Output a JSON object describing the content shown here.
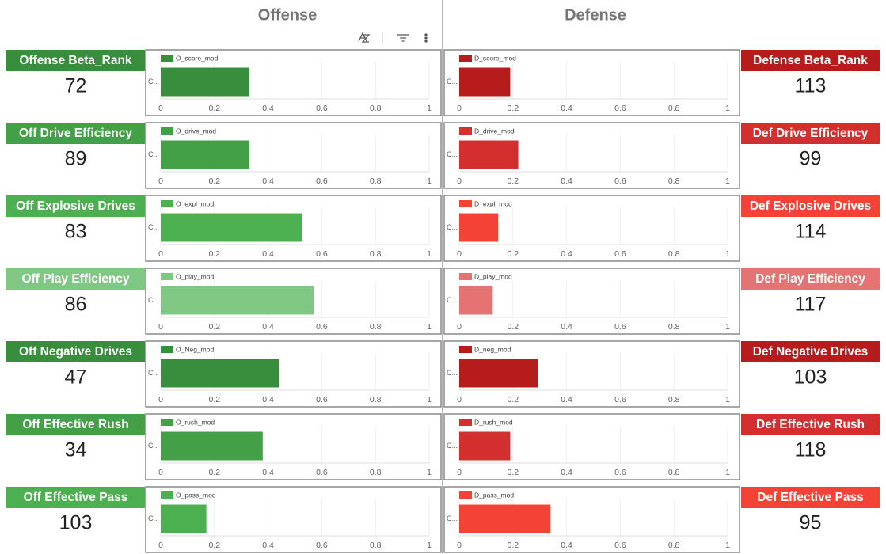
{
  "headers": {
    "offense": "Offense",
    "defense": "Defense"
  },
  "cards": {
    "offense": [
      {
        "label": "Offense Beta_Rank",
        "value": "72",
        "color": "#388e3c"
      },
      {
        "label": "Off Drive Efficiency",
        "value": "89",
        "color": "#43a047"
      },
      {
        "label": "Off Explosive Drives",
        "value": "83",
        "color": "#4caf50"
      },
      {
        "label": "Off Play Efficiency",
        "value": "86",
        "color": "#81c784"
      },
      {
        "label": "Off Negative Drives",
        "value": "47",
        "color": "#388e3c"
      },
      {
        "label": "Off Effective Rush",
        "value": "34",
        "color": "#43a047"
      },
      {
        "label": "Off Effective Pass",
        "value": "103",
        "color": "#4caf50"
      }
    ],
    "defense": [
      {
        "label": "Defense Beta_Rank",
        "value": "113",
        "color": "#b71c1c"
      },
      {
        "label": "Def Drive Efficiency",
        "value": "99",
        "color": "#d32f2f"
      },
      {
        "label": "Def Explosive Drives",
        "value": "114",
        "color": "#f44336"
      },
      {
        "label": "Def Play Efficiency",
        "value": "117",
        "color": "#e57373"
      },
      {
        "label": "Def Negative Drives",
        "value": "103",
        "color": "#b71c1c"
      },
      {
        "label": "Def Effective Rush",
        "value": "118",
        "color": "#d32f2f"
      },
      {
        "label": "Def Effective Pass",
        "value": "95",
        "color": "#f44336"
      }
    ]
  },
  "chart_data": [
    {
      "type": "bar",
      "categories": [
        "C..."
      ],
      "series": [
        {
          "name": "O_score_mod",
          "color": "#388e3c",
          "values": [
            0.33
          ]
        }
      ],
      "xlim": [
        0,
        1
      ],
      "xticks": [
        0,
        0.2,
        0.4,
        0.6,
        0.8,
        1
      ],
      "grid": true
    },
    {
      "type": "bar",
      "categories": [
        "C..."
      ],
      "series": [
        {
          "name": "O_drive_mod",
          "color": "#43a047",
          "values": [
            0.33
          ]
        }
      ],
      "xlim": [
        0,
        1
      ],
      "xticks": [
        0,
        0.2,
        0.4,
        0.6,
        0.8,
        1
      ],
      "grid": true
    },
    {
      "type": "bar",
      "categories": [
        "C..."
      ],
      "series": [
        {
          "name": "O_expl_mod",
          "color": "#4caf50",
          "values": [
            0.525
          ]
        }
      ],
      "xlim": [
        0,
        1
      ],
      "xticks": [
        0,
        0.2,
        0.4,
        0.6,
        0.8,
        1
      ],
      "grid": true
    },
    {
      "type": "bar",
      "categories": [
        "C..."
      ],
      "series": [
        {
          "name": "O_play_mod",
          "color": "#81c784",
          "values": [
            0.57
          ]
        }
      ],
      "xlim": [
        0,
        1
      ],
      "xticks": [
        0,
        0.2,
        0.4,
        0.6,
        0.8,
        1
      ],
      "grid": true
    },
    {
      "type": "bar",
      "categories": [
        "C..."
      ],
      "series": [
        {
          "name": "O_Neg_mod",
          "color": "#388e3c",
          "values": [
            0.44
          ]
        }
      ],
      "xlim": [
        0,
        1
      ],
      "xticks": [
        0,
        0.2,
        0.4,
        0.6,
        0.8,
        1
      ],
      "grid": true
    },
    {
      "type": "bar",
      "categories": [
        "C..."
      ],
      "series": [
        {
          "name": "O_rush_mod",
          "color": "#43a047",
          "values": [
            0.38
          ]
        }
      ],
      "xlim": [
        0,
        1
      ],
      "xticks": [
        0,
        0.2,
        0.4,
        0.6,
        0.8,
        1
      ],
      "grid": true
    },
    {
      "type": "bar",
      "categories": [
        "C..."
      ],
      "series": [
        {
          "name": "O_pass_mod",
          "color": "#4caf50",
          "values": [
            0.17
          ]
        }
      ],
      "xlim": [
        0,
        1
      ],
      "xticks": [
        0,
        0.2,
        0.4,
        0.6,
        0.8,
        1
      ],
      "grid": true
    },
    {
      "type": "bar",
      "categories": [
        "C..."
      ],
      "series": [
        {
          "name": "D_score_mod",
          "color": "#b71c1c",
          "values": [
            0.19
          ]
        }
      ],
      "xlim": [
        0,
        1
      ],
      "xticks": [
        0,
        0.2,
        0.4,
        0.6,
        0.8,
        1
      ],
      "grid": true
    },
    {
      "type": "bar",
      "categories": [
        "C..."
      ],
      "series": [
        {
          "name": "D_drive_mod",
          "color": "#d32f2f",
          "values": [
            0.22
          ]
        }
      ],
      "xlim": [
        0,
        1
      ],
      "xticks": [
        0,
        0.2,
        0.4,
        0.6,
        0.8,
        1
      ],
      "grid": true
    },
    {
      "type": "bar",
      "categories": [
        "C..."
      ],
      "series": [
        {
          "name": "D_expl_mod",
          "color": "#f44336",
          "values": [
            0.145
          ]
        }
      ],
      "xlim": [
        0,
        1
      ],
      "xticks": [
        0,
        0.2,
        0.4,
        0.6,
        0.8,
        1
      ],
      "grid": true
    },
    {
      "type": "bar",
      "categories": [
        "C..."
      ],
      "series": [
        {
          "name": "D_play_mod",
          "color": "#e57373",
          "values": [
            0.125
          ]
        }
      ],
      "xlim": [
        0,
        1
      ],
      "xticks": [
        0,
        0.2,
        0.4,
        0.6,
        0.8,
        1
      ],
      "grid": true
    },
    {
      "type": "bar",
      "categories": [
        "C..."
      ],
      "series": [
        {
          "name": "D_neg_mod",
          "color": "#b71c1c",
          "values": [
            0.295
          ]
        }
      ],
      "xlim": [
        0,
        1
      ],
      "xticks": [
        0,
        0.2,
        0.4,
        0.6,
        0.8,
        1
      ],
      "grid": true
    },
    {
      "type": "bar",
      "categories": [
        "C..."
      ],
      "series": [
        {
          "name": "D_rush_mod",
          "color": "#d32f2f",
          "values": [
            0.19
          ]
        }
      ],
      "xlim": [
        0,
        1
      ],
      "xticks": [
        0,
        0.2,
        0.4,
        0.6,
        0.8,
        1
      ],
      "grid": true
    },
    {
      "type": "bar",
      "categories": [
        "C..."
      ],
      "series": [
        {
          "name": "D_pass_mod",
          "color": "#f44336",
          "values": [
            0.34
          ]
        }
      ],
      "xlim": [
        0,
        1
      ],
      "xticks": [
        0,
        0.2,
        0.4,
        0.6,
        0.8,
        1
      ],
      "grid": true
    }
  ]
}
